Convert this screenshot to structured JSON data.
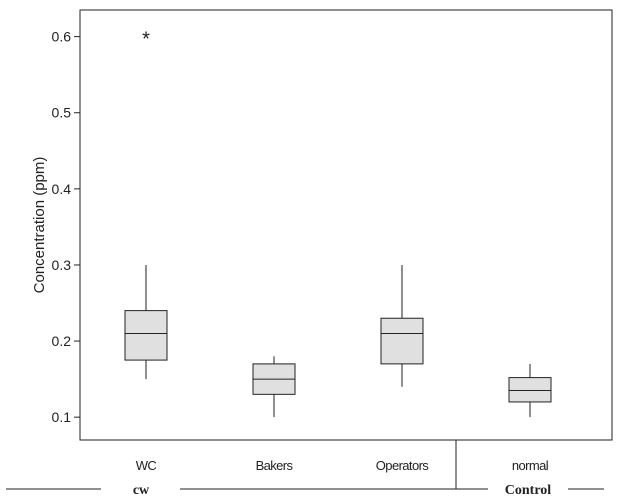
{
  "chart_data": {
    "type": "boxplot",
    "ylabel": "Concentration (ppm)",
    "ylim": [
      0.07,
      0.635
    ],
    "yticks": [
      0.1,
      0.2,
      0.3,
      0.4,
      0.5,
      0.6
    ],
    "ytick_labels": [
      "0.1",
      "0.2",
      "0.3",
      "0.4",
      "0.5",
      "0.6"
    ],
    "categories": [
      "WC",
      "Bakers",
      "Operators",
      "normal"
    ],
    "boxes": [
      {
        "name": "WC",
        "whisker_low": 0.15,
        "q1": 0.175,
        "median": 0.21,
        "q3": 0.24,
        "whisker_high": 0.3,
        "outliers": [
          0.6
        ]
      },
      {
        "name": "Bakers",
        "whisker_low": 0.1,
        "q1": 0.13,
        "median": 0.15,
        "q3": 0.17,
        "whisker_high": 0.18,
        "outliers": []
      },
      {
        "name": "Operators",
        "whisker_low": 0.14,
        "q1": 0.17,
        "median": 0.21,
        "q3": 0.23,
        "whisker_high": 0.3,
        "outliers": []
      },
      {
        "name": "normal",
        "whisker_low": 0.1,
        "q1": 0.12,
        "median": 0.135,
        "q3": 0.152,
        "whisker_high": 0.17,
        "outliers": []
      }
    ],
    "groups": [
      {
        "label": "cw",
        "categories": [
          "WC",
          "Bakers",
          "Operators"
        ]
      },
      {
        "label": "Control",
        "categories": [
          "normal"
        ]
      }
    ],
    "colors": {
      "box_fill": "#e0e0e0",
      "stroke": "#222222"
    },
    "outlier_marker": "*",
    "grid": false
  }
}
